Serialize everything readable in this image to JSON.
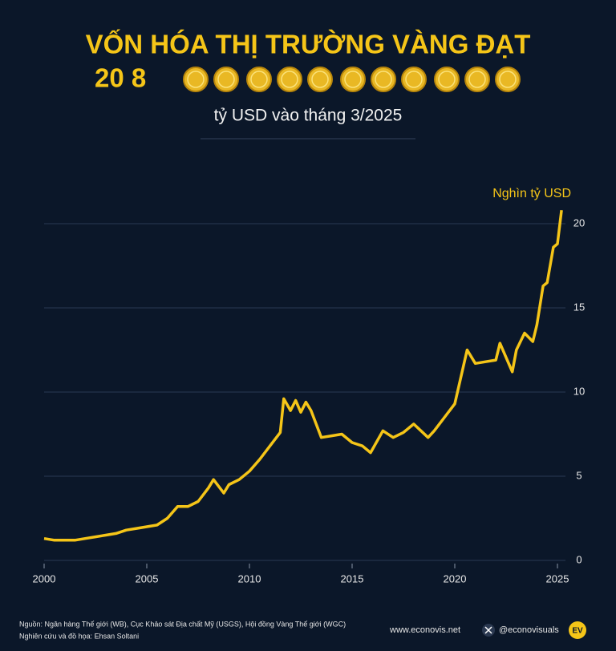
{
  "header": {
    "title": "VỐN HÓA THỊ TRƯỜNG VÀNG ĐẠT",
    "figure": "20 8",
    "subtitle": "tỷ USD vào tháng 3/2025"
  },
  "chart_data": {
    "type": "line",
    "unit_label": "Nghìn tỷ USD",
    "x": [
      2000,
      2000.5,
      2001,
      2001.5,
      2002,
      2002.5,
      2003,
      2003.5,
      2004,
      2004.5,
      2005,
      2005.5,
      2006,
      2006.5,
      2007,
      2007.5,
      2008,
      2008.25,
      2008.75,
      2009,
      2009.5,
      2010,
      2010.5,
      2011,
      2011.5,
      2011.67,
      2012,
      2012.25,
      2012.5,
      2012.75,
      2013,
      2013.5,
      2014,
      2014.5,
      2015,
      2015.5,
      2015.9,
      2016.5,
      2017,
      2017.5,
      2018,
      2018.7,
      2019,
      2019.5,
      2020,
      2020.6,
      2021,
      2021.5,
      2022,
      2022.2,
      2022.8,
      2023,
      2023.4,
      2023.8,
      2024,
      2024.3,
      2024.5,
      2024.8,
      2025,
      2025.2
    ],
    "series": [
      {
        "name": "Vốn hóa thị trường vàng",
        "color": "#f5c518",
        "values": [
          1.3,
          1.2,
          1.2,
          1.2,
          1.3,
          1.4,
          1.5,
          1.6,
          1.8,
          1.9,
          2.0,
          2.1,
          2.5,
          3.2,
          3.2,
          3.5,
          4.3,
          4.8,
          4.0,
          4.5,
          4.8,
          5.3,
          6.0,
          6.8,
          7.6,
          9.6,
          8.9,
          9.5,
          8.8,
          9.4,
          8.9,
          7.3,
          7.4,
          7.5,
          7.0,
          6.8,
          6.4,
          7.7,
          7.3,
          7.6,
          8.1,
          7.3,
          7.7,
          8.5,
          9.3,
          12.5,
          11.7,
          11.8,
          11.9,
          12.9,
          11.2,
          12.5,
          13.5,
          13.0,
          14.0,
          16.3,
          16.5,
          18.6,
          18.8,
          20.8
        ]
      }
    ],
    "xlim": [
      2000,
      2025
    ],
    "xticks": [
      2000,
      2005,
      2010,
      2015,
      2020,
      2025
    ],
    "ylim": [
      0,
      21
    ],
    "yticks": [
      0,
      5,
      10,
      15,
      20
    ],
    "grid": true
  },
  "footer": {
    "source": "Nguồn: Ngân hàng Thế giới (WB), Cục Khảo sát Địa chất Mỹ (USGS), Hội đồng Vàng Thế giới (WGC)",
    "credit": "Nghiên cứu và đồ họa: Ehsan Soltani",
    "website": "www.econovis.net",
    "social": "@econovisuals",
    "logo": "EV"
  }
}
